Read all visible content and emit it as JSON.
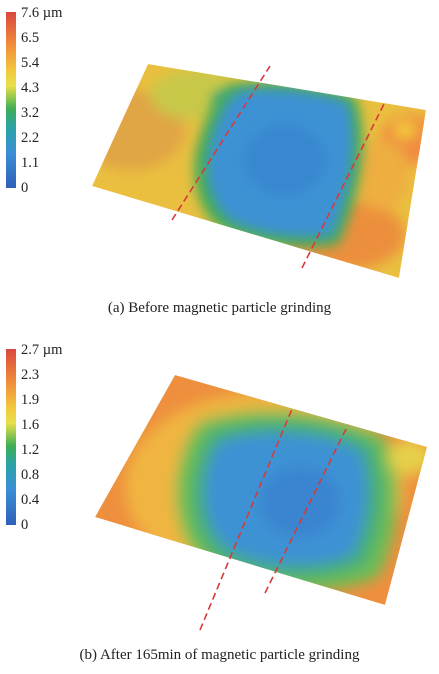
{
  "panel_a": {
    "scale_ticks": [
      "7.6 µm",
      "6.5",
      "5.4",
      "4.3",
      "3.2",
      "2.2",
      "1.1",
      "0"
    ],
    "caption": "(a) Before magnetic particle grinding"
  },
  "panel_b": {
    "scale_ticks": [
      "2.7 µm",
      "2.3",
      "1.9",
      "1.6",
      "1.2",
      "0.8",
      "0.4",
      "0"
    ],
    "caption": "(b) After 165min of magnetic particle grinding"
  },
  "colors": {
    "high": "#d9473f",
    "orange": "#f08a3b",
    "yellow": "#f3c73e",
    "green": "#3fae55",
    "blue": "#3a8fd6",
    "low": "#2f5fb8",
    "marker_line": "#d73a3a"
  }
}
